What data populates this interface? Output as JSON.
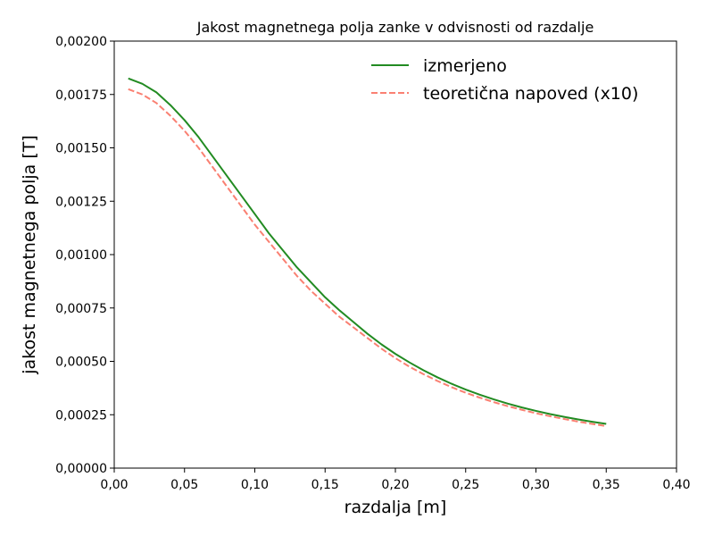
{
  "chart_data": {
    "type": "line",
    "title": "Jakost magnetnega polja zanke v odvisnosti od razdalje",
    "xlabel": "razdalja [m]",
    "ylabel": "jakost magnetnega polja [T]",
    "xlim": [
      0.0,
      0.4
    ],
    "ylim": [
      0.0,
      0.002
    ],
    "xticks": [
      0.0,
      0.05,
      0.1,
      0.15,
      0.2,
      0.25,
      0.3,
      0.35,
      0.4
    ],
    "xtick_labels": [
      "0,00",
      "0,05",
      "0,10",
      "0,15",
      "0,20",
      "0,25",
      "0,30",
      "0,35",
      "0,40"
    ],
    "yticks": [
      0.0,
      0.00025,
      0.0005,
      0.00075,
      0.001,
      0.00125,
      0.0015,
      0.00175,
      0.002
    ],
    "ytick_labels": [
      "0,00000",
      "0,00025",
      "0,00050",
      "0,00075",
      "0,00100",
      "0,00125",
      "0,00150",
      "0,00175",
      "0,00200"
    ],
    "grid": false,
    "legend_position": "top-right",
    "series": [
      {
        "name": "izmerjeno",
        "color": "#228b22",
        "style": "solid",
        "x": [
          0.01,
          0.02,
          0.03,
          0.04,
          0.05,
          0.06,
          0.07,
          0.08,
          0.09,
          0.1,
          0.11,
          0.12,
          0.13,
          0.14,
          0.15,
          0.16,
          0.17,
          0.18,
          0.19,
          0.2,
          0.21,
          0.22,
          0.23,
          0.24,
          0.25,
          0.26,
          0.27,
          0.28,
          0.29,
          0.3,
          0.31,
          0.32,
          0.33,
          0.34,
          0.35
        ],
        "y": [
          0.001825,
          0.0018,
          0.00176,
          0.0017,
          0.00163,
          0.00155,
          0.00146,
          0.00137,
          0.00128,
          0.00119,
          0.0011,
          0.00102,
          0.00094,
          0.00087,
          0.0008,
          0.00074,
          0.000685,
          0.00063,
          0.00058,
          0.000535,
          0.000495,
          0.000458,
          0.000425,
          0.000395,
          0.000368,
          0.000344,
          0.000322,
          0.000302,
          0.000284,
          0.000268,
          0.000253,
          0.00024,
          0.000228,
          0.000217,
          0.000207
        ]
      },
      {
        "name": "teoretična napoved (x10)",
        "color": "#fa8072",
        "style": "dashed",
        "x": [
          0.01,
          0.02,
          0.03,
          0.04,
          0.05,
          0.06,
          0.07,
          0.08,
          0.09,
          0.1,
          0.11,
          0.12,
          0.13,
          0.14,
          0.15,
          0.16,
          0.17,
          0.18,
          0.19,
          0.2,
          0.21,
          0.22,
          0.23,
          0.24,
          0.25,
          0.26,
          0.27,
          0.28,
          0.29,
          0.3,
          0.31,
          0.32,
          0.33,
          0.34,
          0.35
        ],
        "y": [
          0.001775,
          0.00175,
          0.00171,
          0.00165,
          0.00158,
          0.0015,
          0.00141,
          0.00132,
          0.00123,
          0.00114,
          0.00106,
          0.00098,
          0.0009,
          0.00083,
          0.00077,
          0.00071,
          0.00066,
          0.00061,
          0.00056,
          0.000515,
          0.000475,
          0.00044,
          0.000408,
          0.000379,
          0.000353,
          0.00033,
          0.000309,
          0.00029,
          0.000273,
          0.000257,
          0.000243,
          0.00023,
          0.000218,
          0.000207,
          0.000197
        ]
      }
    ]
  }
}
